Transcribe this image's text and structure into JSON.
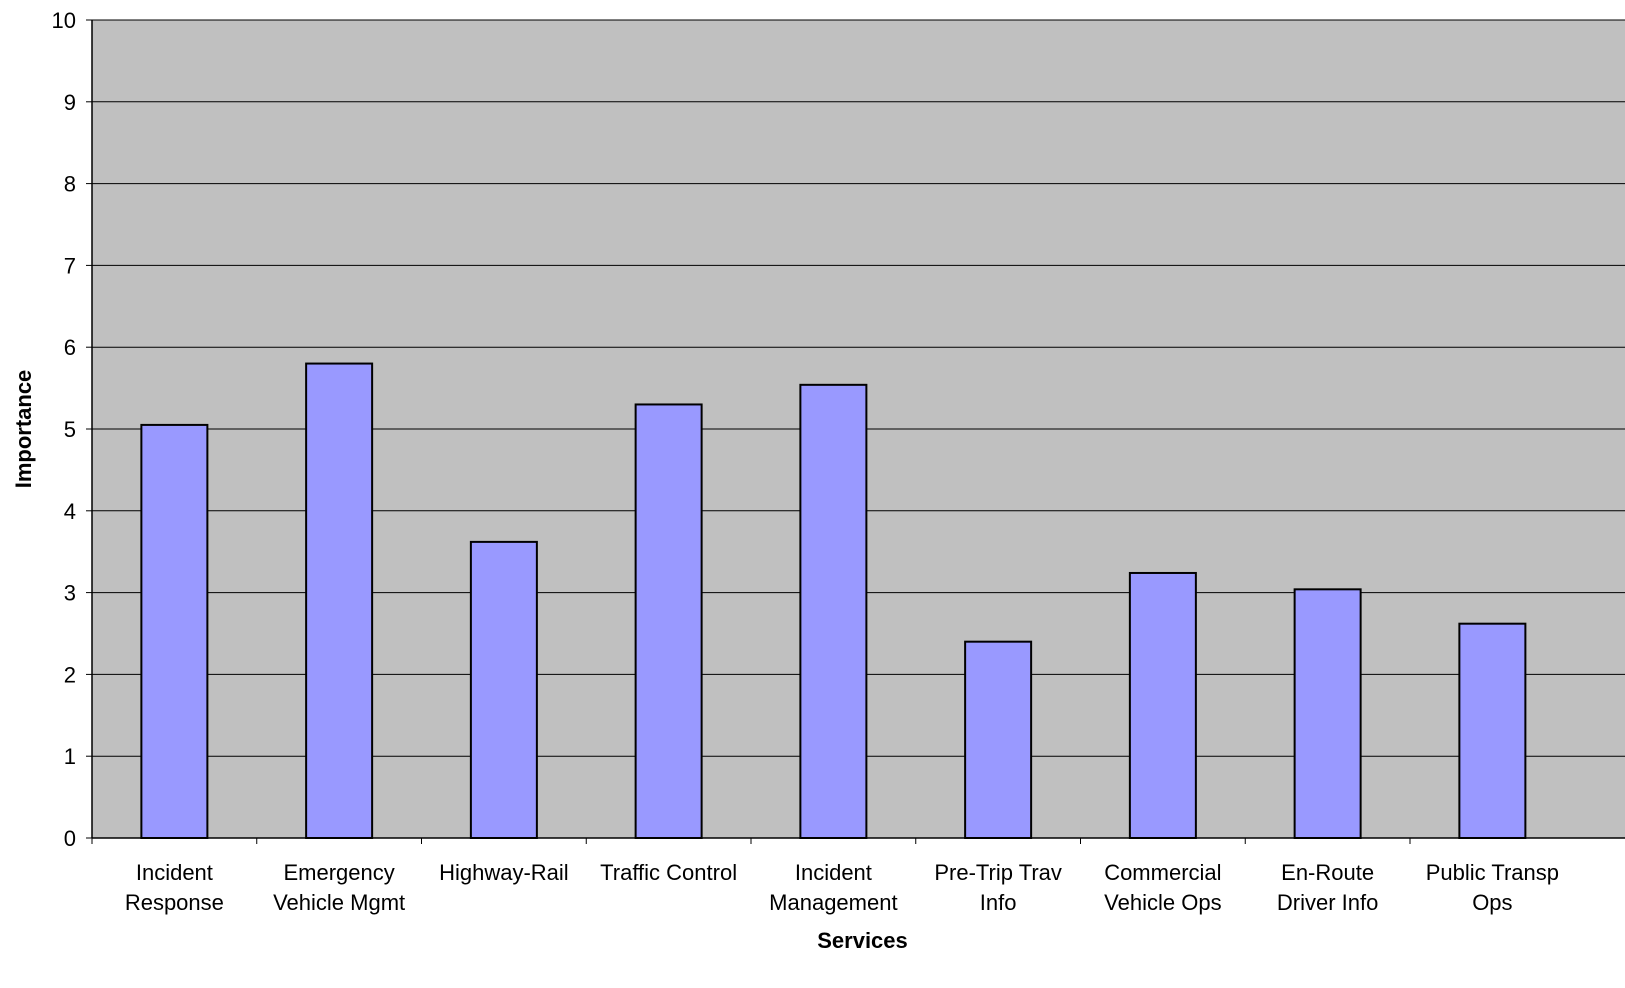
{
  "chart_data": {
    "type": "bar",
    "title": "",
    "xlabel": "Services",
    "ylabel": "Importance",
    "ylim": [
      0,
      10
    ],
    "yticks": [
      0,
      1,
      2,
      3,
      4,
      5,
      6,
      7,
      8,
      9,
      10
    ],
    "grid": true,
    "legend": "none",
    "categories": [
      [
        "Incident",
        "Response"
      ],
      [
        "Emergency",
        "Vehicle Mgmt"
      ],
      [
        "Highway-Rail"
      ],
      [
        "Traffic Control"
      ],
      [
        "Incident",
        "Management"
      ],
      [
        "Pre-Trip Trav",
        "Info"
      ],
      [
        "Commercial",
        "Vehicle Ops"
      ],
      [
        "En-Route",
        "Driver Info"
      ],
      [
        "Public Transp",
        "Ops"
      ]
    ],
    "values": [
      5.05,
      5.8,
      3.62,
      5.3,
      5.54,
      2.4,
      3.24,
      3.04,
      2.62
    ],
    "colors": {
      "plot_background": "#c0c0c0",
      "bar_fill": "#9999ff",
      "bar_stroke": "#000000",
      "gridline": "#000000"
    }
  }
}
